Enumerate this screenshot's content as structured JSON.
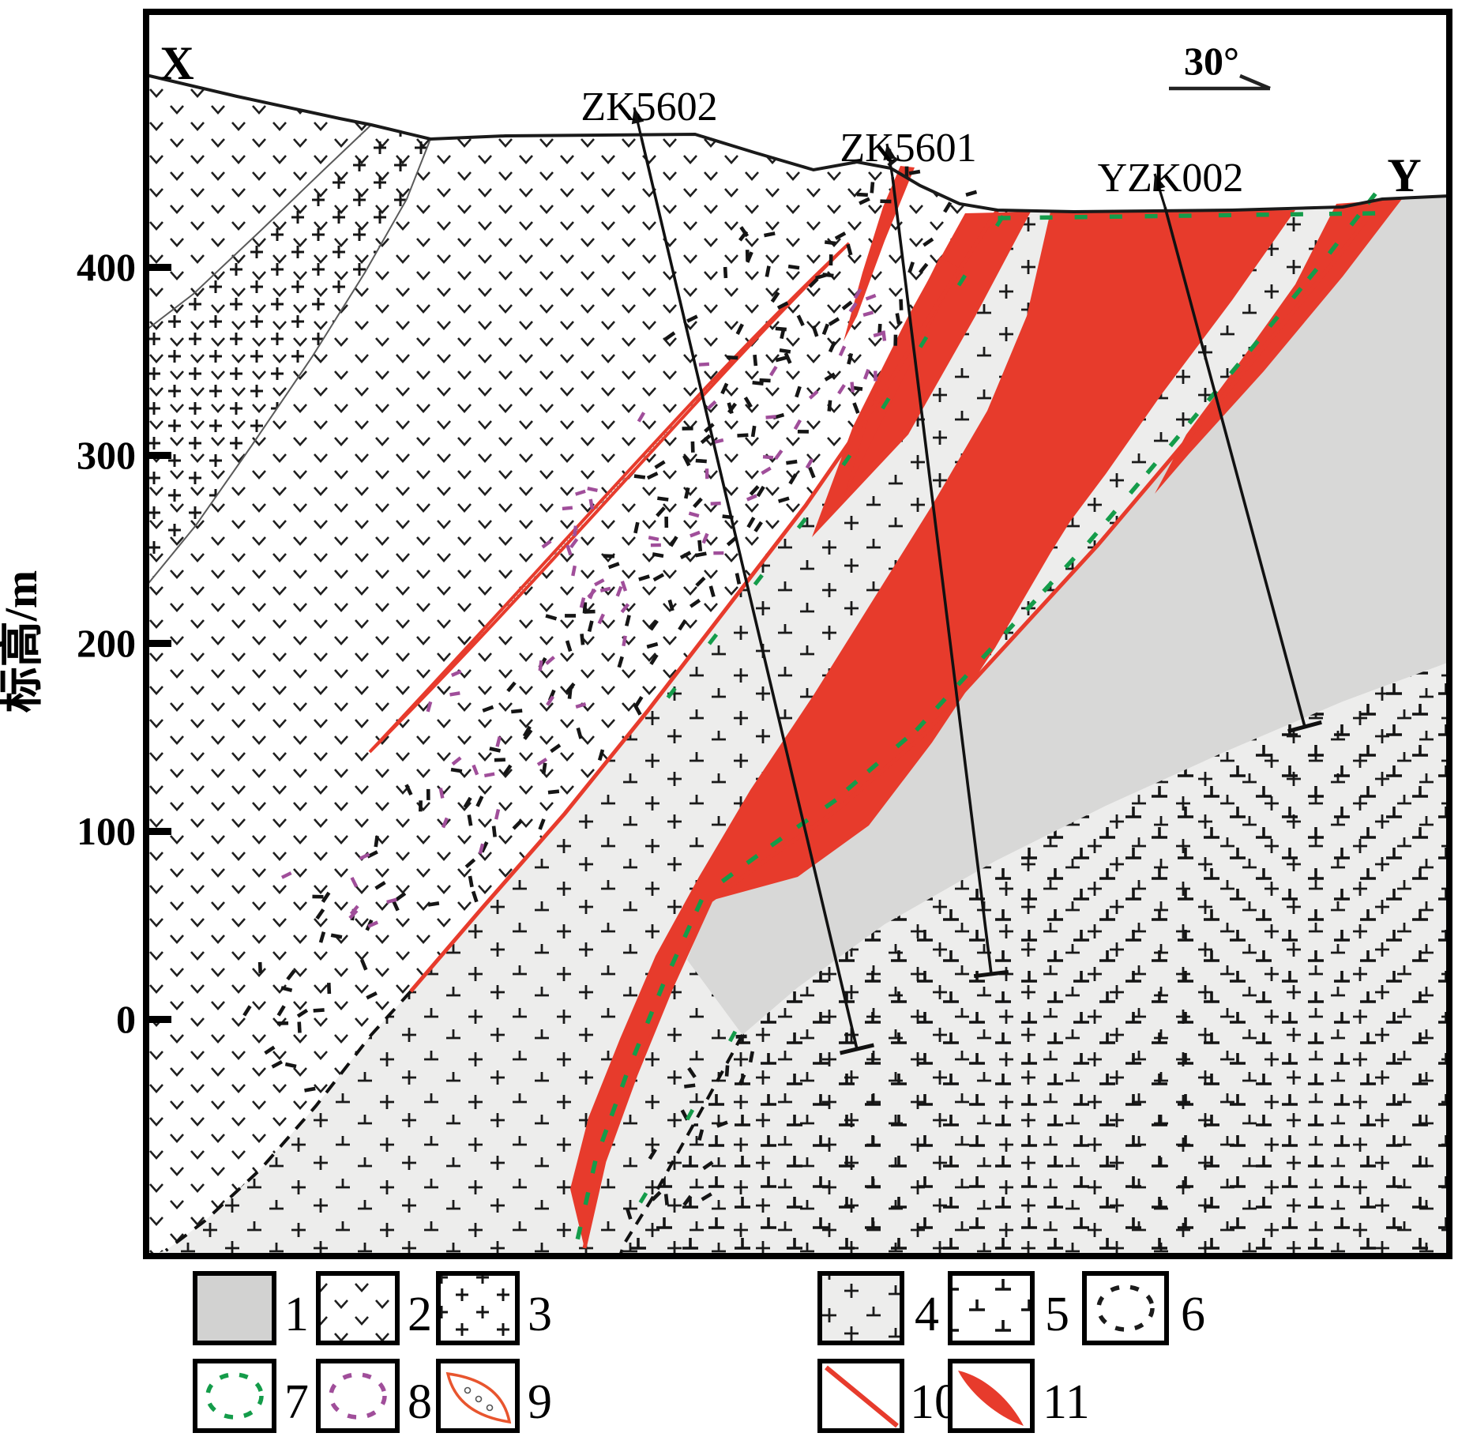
{
  "figure": {
    "type": "geological-cross-section",
    "section_end_left": "X",
    "section_end_right": "Y",
    "azimuth_label": "30°"
  },
  "axis": {
    "title": "标高/m",
    "ticks": [
      {
        "label": "400"
      },
      {
        "label": "300"
      },
      {
        "label": "200"
      },
      {
        "label": "100"
      },
      {
        "label": "0"
      }
    ]
  },
  "drill_holes": [
    {
      "name": "ZK5602"
    },
    {
      "name": "ZK5601"
    },
    {
      "name": "YZK002"
    }
  ],
  "legend": {
    "items": [
      {
        "num": "1",
        "symbol": "grey-fill"
      },
      {
        "num": "2",
        "symbol": "v-pattern"
      },
      {
        "num": "3",
        "symbol": "plus-pattern"
      },
      {
        "num": "4",
        "symbol": "grey-plus-tee-pattern"
      },
      {
        "num": "5",
        "symbol": "tee-pattern"
      },
      {
        "num": "6",
        "symbol": "black-dashed-outline"
      },
      {
        "num": "7",
        "symbol": "green-dashed-outline"
      },
      {
        "num": "8",
        "symbol": "purple-dashed-outline"
      },
      {
        "num": "9",
        "symbol": "red-lens-breccia"
      },
      {
        "num": "10",
        "symbol": "red-line"
      },
      {
        "num": "11",
        "symbol": "red-orebody"
      }
    ]
  },
  "colors": {
    "ore_red": "#e73b2c",
    "unit4_bg": "#ededec",
    "unit1_grey": "#d8d8d7",
    "legend_grey": "#d2d2d1",
    "green": "#149c4a",
    "purple": "#a04e9a",
    "ink": "#141414"
  }
}
